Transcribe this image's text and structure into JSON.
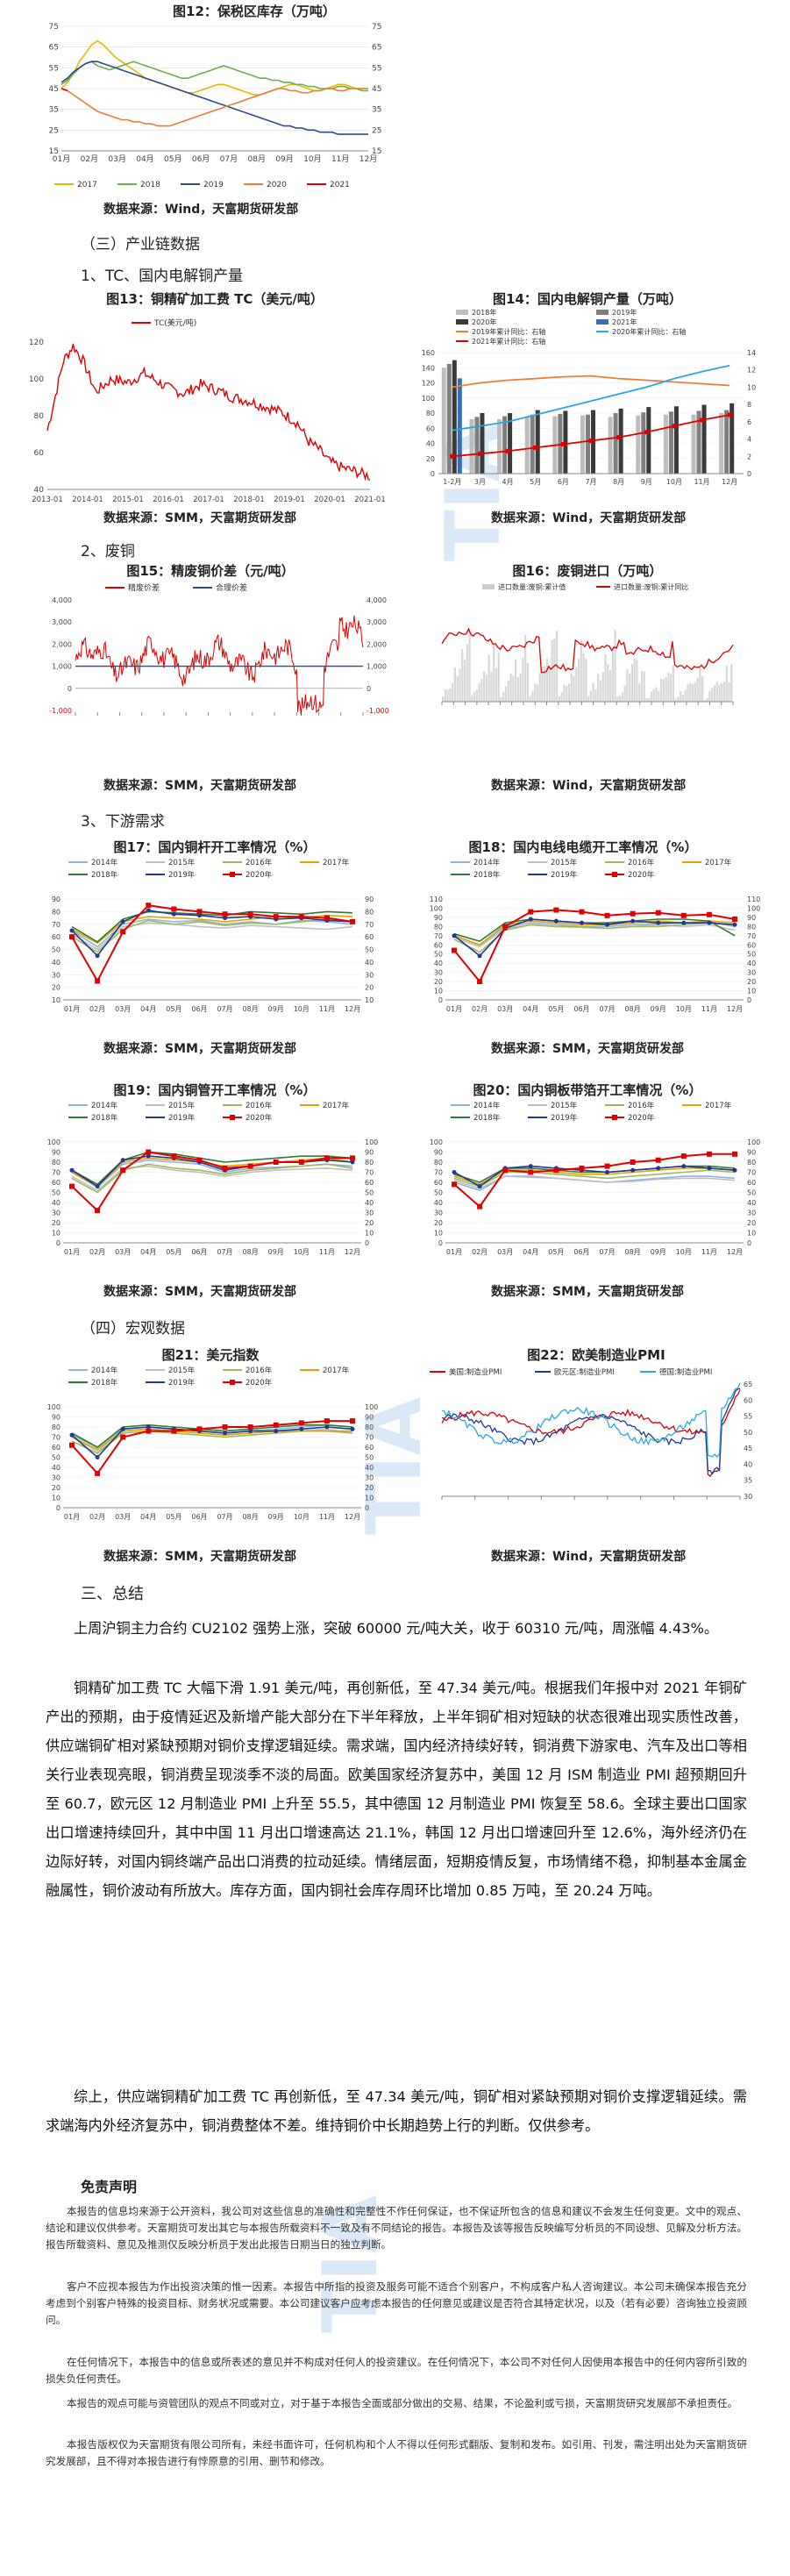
{
  "fig12": {
    "title": "图12：保税区库存（万吨）",
    "source": "数据来源：Wind，天富期货研发部",
    "x_ticks": [
      "01月",
      "02月",
      "03月",
      "04月",
      "05月",
      "06月",
      "07月",
      "08月",
      "09月",
      "10月",
      "11月",
      "12月"
    ],
    "y_ticks": [
      "15",
      "25",
      "35",
      "45",
      "55",
      "65",
      "75"
    ],
    "legend": [
      "2017",
      "2018",
      "2019",
      "2020",
      "2021"
    ]
  },
  "section3": "（三）产业链数据",
  "sub1": "1、TC、国内电解铜产量",
  "fig13": {
    "title": "图13：铜精矿加工费 TC（美元/吨）",
    "legend": "TC(美元/吨)",
    "y_ticks": [
      "40",
      "60",
      "80",
      "100",
      "120"
    ],
    "x_ticks": [
      "2013-01",
      "2014-01",
      "2015-01",
      "2016-01",
      "2017-01",
      "2018-01",
      "2019-01",
      "2020-01",
      "2021-01"
    ],
    "source": "数据来源：SMM，天富期货研发部"
  },
  "fig14": {
    "title": "图14：国内电解铜产量（万吨）",
    "legend": [
      "2018年",
      "2019年",
      "2020年",
      "2021年",
      "2019年累计同比：右轴",
      "2020年累计同比：右轴",
      "2021年累计同比：右轴"
    ],
    "x_ticks": [
      "1-2月",
      "3月",
      "4月",
      "5月",
      "6月",
      "7月",
      "8月",
      "9月",
      "10月",
      "11月",
      "12月"
    ],
    "y_left": [
      "0",
      "20",
      "40",
      "60",
      "80",
      "100",
      "120",
      "140",
      "160"
    ],
    "y_right": [
      "0",
      "2",
      "4",
      "6",
      "8",
      "10",
      "12",
      "14"
    ],
    "source": "数据来源：Wind，天富期货研发部"
  },
  "sub2": "2、废铜",
  "fig15": {
    "title": "图15：精废铜价差（元/吨）",
    "legend": [
      "精废价差",
      "合理价差"
    ],
    "y_ticks": [
      "-1,000",
      "0",
      "1,000",
      "2,000",
      "3,000",
      "4,000"
    ],
    "source": "数据来源：SMM，天富期货研发部"
  },
  "fig16": {
    "title": "图16：废铜进口（万吨）",
    "legend": [
      "进口数量:废铜:累计值",
      "进口数量:废铜:累计同比"
    ],
    "source": "数据来源：Wind，天富期货研发部"
  },
  "sub3": "3、下游需求",
  "fig17": {
    "title": "图17：国内铜杆开工率情况（%）",
    "source": "数据来源：SMM，天富期货研发部"
  },
  "fig18": {
    "title": "图18：国内电线电缆开工率情况（%）",
    "source": "数据来源：SMM，天富期货研发部"
  },
  "fig19": {
    "title": "图19：国内铜管开工率情况（%）",
    "source": "数据来源：SMM，天富期货研发部"
  },
  "fig20": {
    "title": "图20：国内铜板带箔开工率情况（%）",
    "source": "数据来源：SMM，天富期货研发部"
  },
  "section4": "（四）宏观数据",
  "fig21": {
    "title": "图21：美元指数",
    "source": "数据来源：SMM，天富期货研发部"
  },
  "fig22": {
    "title": "图22：欧美制造业PMI",
    "legend": [
      "美国:制造业PMI",
      "欧元区:制造业PMI",
      "德国:制造业PMI"
    ],
    "source": "数据来源：Wind，天富期货研发部"
  },
  "year_legend": [
    "2014年",
    "2015年",
    "2016年",
    "2017年",
    "2018年",
    "2019年",
    "2020年"
  ],
  "month_ticks": [
    "01月",
    "02月",
    "03月",
    "04月",
    "05月",
    "06月",
    "07月",
    "08月",
    "09月",
    "10月",
    "11月",
    "12月"
  ],
  "summary_title": "三、总结",
  "paragraphs": [
    "上周沪铜主力合约 CU2102 强势上涨，突破 60000 元/吨大关，收于 60310 元/吨，周涨幅 4.43%。",
    "铜精矿加工费 TC 大幅下滑 1.91 美元/吨，再创新低，至 47.34 美元/吨。根据我们年报中对 2021 年铜矿产出的预期，由于疫情延迟及新增产能大部分在下半年释放，上半年铜矿相对短缺的状态很难出现实质性改善，供应端铜矿相对紧缺预期对铜价支撑逻辑延续。需求端，国内经济持续好转，铜消费下游家电、汽车及出口等相关行业表现亮眼，铜消费呈现淡季不淡的局面。欧美国家经济复苏中，美国 12 月 ISM 制造业 PMI 超预期回升至 60.7，欧元区 12 月制造业 PMI 上升至 55.5，其中德国 12 月制造业 PMI 恢复至 58.6。全球主要出口国家出口增速持续回升，其中中国 11 月出口增速高达 21.1%，韩国 12 月出口增速回升至 12.6%，海外经济仍在边际好转，对国内铜终端产品出口消费的拉动延续。情绪层面，短期疫情反复，市场情绪不稳，抑制基本金属金融属性，铜价波动有所放大。库存方面，国内铜社会库存周环比增加 0.85 万吨，至 20.24 万吨。",
    "综上，供应端铜精矿加工费 TC 再创新低，至 47.34 美元/吨，铜矿相对紧缺预期对铜价支撑逻辑延续。需求端海内外经济复苏中，铜消费整体不差。维持铜价中长期趋势上行的判断。仅供参考。"
  ],
  "disclaimer_title": "免责声明",
  "disclaimers": [
    "本报告的信息均来源于公开资料，我公司对这些信息的准确性和完整性不作任何保证，也不保证所包含的信息和建议不会发生任何变更。文中的观点、结论和建议仅供参考。天富期货可发出其它与本报告所载资料不一致及有不同结论的报告。本报告及该等报告反映编写分析员的不同设想、见解及分析方法。报告所载资料、意见及推测仅反映分析员于发出此报告日期当日的独立判断。",
    "客户不应视本报告为作出投资决策的惟一因素。本报告中所指的投资及服务可能不适合个别客户，不构成客户私人咨询建议。本公司未确保本报告充分考虑到个别客户特殊的投资目标、财务状况或需要。本公司建议客户应考虑本报告的任何意见或建议是否符合其特定状况，以及（若有必要）咨询独立投资顾问。",
    "在任何情况下，本报告中的信息或所表述的意见并不构成对任何人的投资建议。在任何情况下，本公司不对任何人因使用本报告中的任何内容所引致的损失负任何责任。",
    "本报告的观点可能与资管团队的观点不同或对立，对于基于本报告全面或部分做出的交易、结果，不论盈利或亏损，天富期货研究发展部不承担责任。",
    "本报告版权仅为天富期货有限公司所有，未经书面许可，任何机构和个人不得以任何形式翻版、复制和发布。如引用、刊发，需注明出处为天富期货研究发展部，且不得对本报告进行有悖原意的引用、删节和修改。"
  ],
  "watermark": "TIANFU"
}
